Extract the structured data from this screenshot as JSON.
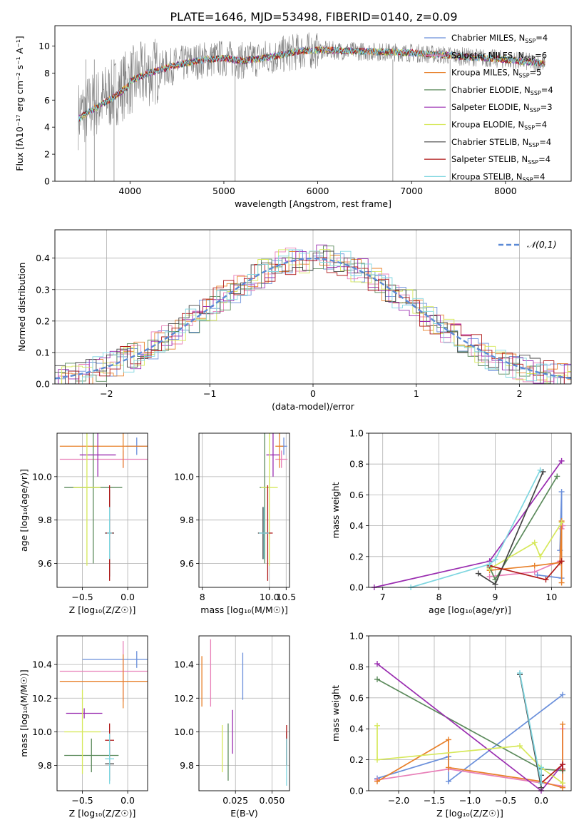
{
  "figure": {
    "title": "PLATE=1646, MJD=53498, FIBERID=0140, z=0.09",
    "colors": {
      "chabrier_miles": "#6a8fdb",
      "salpeter_miles": "#e87fb8",
      "kroupa_miles": "#e8802a",
      "chabrier_elodie": "#5b8a5b",
      "salpeter_elodie": "#9a2db0",
      "kroupa_elodie": "#d6e85a",
      "chabrier_stelib": "#444444",
      "salpeter_stelib": "#b01a1a",
      "kroupa_stelib": "#7fd6e0"
    }
  },
  "chart_data": [
    {
      "id": "spectrum",
      "type": "line",
      "title": "PLATE=1646, MJD=53498, FIBERID=0140, z=0.09",
      "xlabel": "wavelength [Angstrom, rest frame]",
      "ylabel": "Flux [fλ10⁻¹⁷ erg cm⁻² s⁻¹ A⁻¹]",
      "xlim": [
        3200,
        8700
      ],
      "ylim": [
        0,
        11.5
      ],
      "xticks": [
        "4000",
        "5000",
        "6000",
        "7000",
        "8000"
      ],
      "yticks": [
        "0",
        "2",
        "4",
        "6",
        "8",
        "10"
      ],
      "legend_position": "right",
      "legend": [
        {
          "label": "Chabrier MILES, N",
          "sub": "SSP",
          "tail": "=4",
          "color": "#6a8fdb"
        },
        {
          "label": "Salpeter MILES, N",
          "sub": "SSP",
          "tail": "=6",
          "color": "#e87fb8"
        },
        {
          "label": "Kroupa MILES, N",
          "sub": "SSP",
          "tail": "=5",
          "color": "#e8802a"
        },
        {
          "label": "Chabrier ELODIE, N",
          "sub": "SSP",
          "tail": "=4",
          "color": "#5b8a5b"
        },
        {
          "label": "Salpeter ELODIE, N",
          "sub": "SSP",
          "tail": "=3",
          "color": "#9a2db0"
        },
        {
          "label": "Kroupa ELODIE, N",
          "sub": "SSP",
          "tail": "=4",
          "color": "#d6e85a"
        },
        {
          "label": "Chabrier STELIB, N",
          "sub": "SSP",
          "tail": "=4",
          "color": "#444444"
        },
        {
          "label": "Salpeter STELIB, N",
          "sub": "SSP",
          "tail": "=4",
          "color": "#b01a1a"
        },
        {
          "label": "Kroupa STELIB, N",
          "sub": "SSP",
          "tail": "=4",
          "color": "#7fd6e0"
        }
      ],
      "continuum": {
        "x": [
          3450,
          3600,
          3800,
          4000,
          4200,
          4500,
          4800,
          5000,
          5200,
          5500,
          5800,
          6000,
          6500,
          7000,
          7400,
          8000,
          8400
        ],
        "y": [
          4.9,
          5.6,
          6.4,
          7.4,
          8.0,
          8.6,
          9.0,
          9.1,
          8.9,
          9.2,
          9.6,
          9.7,
          9.6,
          9.5,
          9.3,
          9.0,
          8.7
        ]
      }
    },
    {
      "id": "residuals",
      "type": "histogram",
      "xlabel": "(data-model)/error",
      "ylabel": "Normed distribution",
      "xlim": [
        -2.5,
        2.5
      ],
      "ylim": [
        0,
        0.49
      ],
      "xticks": [
        "−2",
        "−1",
        "0",
        "1",
        "2"
      ],
      "yticks": [
        "0.0",
        "0.1",
        "0.2",
        "0.3",
        "0.4"
      ],
      "legend": "𝒩(0,1)",
      "legend_position": "top-right",
      "grid": true
    },
    {
      "id": "age_vs_Z",
      "type": "errorbar",
      "xlabel": "Z [log₁₀(Z/Z☉)]",
      "ylabel": "age  [log₁₀(age/yr)]",
      "xlim": [
        -0.78,
        0.22
      ],
      "ylim": [
        9.49,
        10.2
      ],
      "xticks": [
        "−0.5",
        "0.0"
      ],
      "yticks": [
        "9.6",
        "9.8",
        "10.0"
      ],
      "grid": true,
      "points": [
        {
          "x": 0.1,
          "y": 10.14,
          "xerr": 0.12,
          "yerr": 0.04,
          "color": "#6a8fdb"
        },
        {
          "x": -0.05,
          "y": 10.08,
          "xerr": 0.7,
          "yerr": 0.04,
          "color": "#e87fb8"
        },
        {
          "x": -0.05,
          "y": 10.14,
          "xerr": 0.7,
          "yerr": 0.1,
          "color": "#e8802a"
        },
        {
          "x": -0.38,
          "y": 9.95,
          "xerr": 0.32,
          "yerr": 0.35,
          "color": "#5b8a5b"
        },
        {
          "x": -0.33,
          "y": 10.1,
          "xerr": 0.2,
          "yerr": 0.1,
          "color": "#9a2db0"
        },
        {
          "x": -0.45,
          "y": 9.95,
          "xerr": 0.15,
          "yerr": 0.36,
          "color": "#d6e85a"
        },
        {
          "x": -0.2,
          "y": 9.74,
          "xerr": 0.05,
          "yerr": 0.2,
          "color": "#444444"
        },
        {
          "x": -0.2,
          "y": 9.74,
          "xerr": 0.04,
          "yerr": 0.22,
          "color": "#b01a1a"
        },
        {
          "x": -0.2,
          "y": 9.74,
          "xerr": 0.03,
          "yerr": 0.12,
          "color": "#7fd6e0"
        }
      ]
    },
    {
      "id": "age_vs_mass",
      "type": "errorbar",
      "xlabel": "mass [log₁₀(M/M☉)]",
      "ylabel": "",
      "xlim": [
        7.9,
        10.6
      ],
      "ylim": [
        9.49,
        10.2
      ],
      "xticks": [
        "8",
        "10.0",
        "10.5"
      ],
      "yticks": [
        "9.6",
        "9.8",
        "10.0"
      ],
      "grid": true,
      "points": [
        {
          "x": 10.43,
          "y": 10.14,
          "xerr": 0.1,
          "yerr": 0.04,
          "color": "#6a8fdb"
        },
        {
          "x": 10.36,
          "y": 10.08,
          "xerr": 0.18,
          "yerr": 0.04,
          "color": "#e87fb8"
        },
        {
          "x": 10.3,
          "y": 10.14,
          "xerr": 0.12,
          "yerr": 0.1,
          "color": "#e8802a"
        },
        {
          "x": 9.86,
          "y": 9.95,
          "xerr": 0.15,
          "yerr": 0.35,
          "color": "#5b8a5b"
        },
        {
          "x": 10.11,
          "y": 10.1,
          "xerr": 0.2,
          "yerr": 0.1,
          "color": "#9a2db0"
        },
        {
          "x": 10.0,
          "y": 9.95,
          "xerr": 0.25,
          "yerr": 0.36,
          "color": "#d6e85a"
        },
        {
          "x": 9.81,
          "y": 9.74,
          "xerr": 0.15,
          "yerr": 0.12,
          "color": "#444444"
        },
        {
          "x": 9.95,
          "y": 9.74,
          "xerr": 0.15,
          "yerr": 0.22,
          "color": "#b01a1a"
        },
        {
          "x": 9.84,
          "y": 9.74,
          "xerr": 0.15,
          "yerr": 0.12,
          "color": "#7fd6e0"
        }
      ]
    },
    {
      "id": "weight_vs_age",
      "type": "line",
      "xlabel": "age  [log₁₀(age/yr)]",
      "ylabel": "mass weight",
      "xlim": [
        6.75,
        10.35
      ],
      "ylim": [
        0,
        1.0
      ],
      "xticks": [
        "7",
        "8",
        "9",
        "10"
      ],
      "yticks": [
        "0.0",
        "0.2",
        "0.4",
        "0.6",
        "0.8",
        "1.0"
      ],
      "grid": true,
      "series": [
        {
          "x": [
            9.75,
            10.18,
            10.18,
            10.15
          ],
          "y": [
            0.08,
            0.06,
            0.62,
            0.24
          ],
          "color": "#6a8fdb"
        },
        {
          "x": [
            8.9,
            9.7,
            10.15,
            10.18,
            10.2
          ],
          "y": [
            0.07,
            0.1,
            0.17,
            0.38,
            0.4
          ],
          "color": "#e87fb8"
        },
        {
          "x": [
            8.9,
            9.7,
            10.15,
            10.18,
            10.18
          ],
          "y": [
            0.11,
            0.14,
            0.16,
            0.43,
            0.03
          ],
          "color": "#e8802a"
        },
        {
          "x": [
            8.9,
            9.0,
            10.1
          ],
          "y": [
            0.13,
            0.05,
            0.72
          ],
          "color": "#5b8a5b"
        },
        {
          "x": [
            6.85,
            8.9,
            10.18
          ],
          "y": [
            0.0,
            0.17,
            0.82
          ],
          "color": "#9a2db0"
        },
        {
          "x": [
            8.9,
            9.7,
            9.8,
            10.18
          ],
          "y": [
            0.12,
            0.29,
            0.2,
            0.42
          ],
          "color": "#d6e85a"
        },
        {
          "x": [
            8.7,
            9.0,
            9.85
          ],
          "y": [
            0.09,
            0.02,
            0.75
          ],
          "color": "#444444"
        },
        {
          "x": [
            8.9,
            9.9,
            10.18
          ],
          "y": [
            0.14,
            0.05,
            0.17
          ],
          "color": "#b01a1a"
        },
        {
          "x": [
            7.5,
            8.9,
            9.0,
            9.8
          ],
          "y": [
            0.0,
            0.15,
            0.18,
            0.76
          ],
          "color": "#7fd6e0"
        }
      ]
    },
    {
      "id": "mass_vs_Z",
      "type": "errorbar",
      "xlabel": "Z [log₁₀(Z/Z☉)]",
      "ylabel": "mass [log₁₀(M/M☉)]",
      "xlim": [
        -0.78,
        0.22
      ],
      "ylim": [
        9.65,
        10.57
      ],
      "xticks": [
        "−0.5",
        "0.0"
      ],
      "yticks": [
        "9.8",
        "10.0",
        "10.2",
        "10.4"
      ],
      "grid": true,
      "points": [
        {
          "x": 0.1,
          "y": 10.43,
          "xerr": 0.6,
          "yerr": 0.05,
          "color": "#6a8fdb"
        },
        {
          "x": -0.05,
          "y": 10.36,
          "xerr": 0.7,
          "yerr": 0.18,
          "color": "#e87fb8"
        },
        {
          "x": -0.05,
          "y": 10.3,
          "xerr": 0.7,
          "yerr": 0.16,
          "color": "#e8802a"
        },
        {
          "x": -0.4,
          "y": 9.86,
          "xerr": 0.3,
          "yerr": 0.1,
          "color": "#5b8a5b"
        },
        {
          "x": -0.48,
          "y": 10.11,
          "xerr": 0.2,
          "yerr": 0.03,
          "color": "#9a2db0"
        },
        {
          "x": -0.5,
          "y": 10.0,
          "xerr": 0.2,
          "yerr": 0.25,
          "color": "#d6e85a"
        },
        {
          "x": -0.2,
          "y": 9.81,
          "xerr": 0.05,
          "yerr": 0.1,
          "color": "#444444"
        },
        {
          "x": -0.2,
          "y": 9.95,
          "xerr": 0.05,
          "yerr": 0.1,
          "color": "#b01a1a"
        },
        {
          "x": -0.2,
          "y": 9.84,
          "xerr": 0.05,
          "yerr": 0.15,
          "color": "#7fd6e0"
        }
      ]
    },
    {
      "id": "mass_vs_ebv",
      "type": "errorbar",
      "xlabel": "E(B-V)",
      "ylabel": "",
      "xlim": [
        0.0,
        0.062
      ],
      "ylim": [
        9.65,
        10.57
      ],
      "xticks": [
        "0.025",
        "0.050"
      ],
      "yticks": [
        "9.8",
        "10.0",
        "10.2",
        "10.4"
      ],
      "grid": true,
      "points": [
        {
          "x": 0.03,
          "y": 10.33,
          "yerr": 0.14,
          "color": "#6a8fdb"
        },
        {
          "x": 0.008,
          "y": 10.35,
          "yerr": 0.2,
          "color": "#e87fb8"
        },
        {
          "x": 0.002,
          "y": 10.3,
          "yerr": 0.15,
          "color": "#e8802a"
        },
        {
          "x": 0.02,
          "y": 9.88,
          "yerr": 0.17,
          "color": "#5b8a5b"
        },
        {
          "x": 0.023,
          "y": 10.0,
          "yerr": 0.13,
          "color": "#9a2db0"
        },
        {
          "x": 0.016,
          "y": 9.9,
          "yerr": 0.14,
          "color": "#d6e85a"
        },
        {
          "x": 0.06,
          "y": 9.9,
          "yerr": 0.1,
          "color": "#444444"
        },
        {
          "x": 0.06,
          "y": 9.92,
          "yerr": 0.12,
          "color": "#b01a1a"
        },
        {
          "x": 0.06,
          "y": 9.82,
          "yerr": 0.14,
          "color": "#7fd6e0"
        }
      ]
    },
    {
      "id": "weight_vs_Z",
      "type": "line",
      "xlabel": "Z [log₁₀(Z/Z☉)]",
      "ylabel": "mass weight",
      "xlim": [
        -2.42,
        0.42
      ],
      "ylim": [
        0,
        1.0
      ],
      "xticks": [
        "−2.0",
        "−1.5",
        "−1.0",
        "−0.5",
        "0.0"
      ],
      "yticks": [
        "0.0",
        "0.2",
        "0.4",
        "0.6",
        "0.8",
        "1.0"
      ],
      "grid": true,
      "series": [
        {
          "x": [
            -2.3,
            -1.3,
            -1.3,
            0.3
          ],
          "y": [
            0.08,
            0.22,
            0.06,
            0.62
          ],
          "color": "#6a8fdb"
        },
        {
          "x": [
            -2.3,
            -1.3,
            0.3,
            0.3
          ],
          "y": [
            0.07,
            0.14,
            0.03,
            0.4
          ],
          "color": "#e87fb8"
        },
        {
          "x": [
            -2.3,
            -1.3,
            -1.3,
            0.0,
            0.3,
            0.3
          ],
          "y": [
            0.06,
            0.33,
            0.15,
            0.06,
            0.02,
            0.43
          ],
          "color": "#e8802a"
        },
        {
          "x": [
            -2.3,
            0.0,
            0.3
          ],
          "y": [
            0.72,
            0.14,
            0.13
          ],
          "color": "#5b8a5b"
        },
        {
          "x": [
            -2.3,
            0.0,
            0.3
          ],
          "y": [
            0.82,
            0.0,
            0.17
          ],
          "color": "#9a2db0"
        },
        {
          "x": [
            -2.3,
            -2.3,
            -0.3,
            0.0,
            0.3
          ],
          "y": [
            0.42,
            0.2,
            0.29,
            0.15,
            0.05
          ],
          "color": "#d6e85a"
        },
        {
          "x": [
            -0.3,
            0.0,
            0.0
          ],
          "y": [
            0.75,
            0.02,
            0.1
          ],
          "color": "#444444"
        },
        {
          "x": [
            0.0,
            0.3,
            0.3
          ],
          "y": [
            0.05,
            0.17,
            0.14
          ],
          "color": "#b01a1a"
        },
        {
          "x": [
            -0.3,
            0.0,
            0.0
          ],
          "y": [
            0.76,
            0.05,
            0.15
          ],
          "color": "#7fd6e0"
        }
      ]
    }
  ]
}
